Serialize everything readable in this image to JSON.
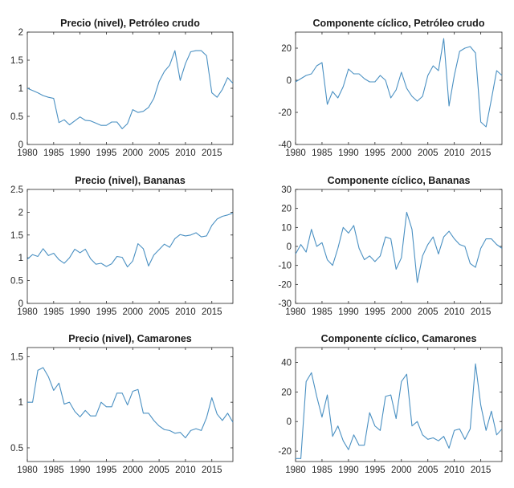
{
  "chart_data": [
    {
      "type": "line",
      "title": "Precio (nivel), Petróleo crudo",
      "xlabel": "",
      "ylabel": "",
      "xlim": [
        1980,
        2019
      ],
      "ylim": [
        0,
        2
      ],
      "xticks": [
        1980,
        1985,
        1990,
        1995,
        2000,
        2005,
        2010,
        2015
      ],
      "yticks": [
        0,
        0.5,
        1,
        1.5,
        2
      ],
      "ytick_labels": [
        "0",
        "0.5",
        "1",
        "1.5",
        "2"
      ],
      "grid": false,
      "color": "#4a90c2",
      "x": [
        1980,
        1981,
        1982,
        1983,
        1984,
        1985,
        1986,
        1987,
        1988,
        1989,
        1990,
        1991,
        1992,
        1993,
        1994,
        1995,
        1996,
        1997,
        1998,
        1999,
        2000,
        2001,
        2002,
        2003,
        2004,
        2005,
        2006,
        2007,
        2008,
        2009,
        2010,
        2011,
        2012,
        2013,
        2014,
        2015,
        2016,
        2017,
        2018,
        2019
      ],
      "y": [
        1.0,
        0.96,
        0.92,
        0.87,
        0.84,
        0.82,
        0.39,
        0.44,
        0.35,
        0.42,
        0.49,
        0.43,
        0.42,
        0.38,
        0.34,
        0.34,
        0.4,
        0.4,
        0.28,
        0.37,
        0.62,
        0.57,
        0.59,
        0.66,
        0.82,
        1.12,
        1.3,
        1.41,
        1.67,
        1.14,
        1.44,
        1.65,
        1.67,
        1.67,
        1.58,
        0.92,
        0.84,
        0.98,
        1.19,
        1.09
      ]
    },
    {
      "type": "line",
      "title": "Componente cíclico, Petróleo crudo",
      "xlabel": "",
      "ylabel": "",
      "xlim": [
        1980,
        2019
      ],
      "ylim": [
        -40,
        30
      ],
      "xticks": [
        1980,
        1985,
        1990,
        1995,
        2000,
        2005,
        2010,
        2015
      ],
      "yticks": [
        -40,
        -20,
        0,
        20
      ],
      "ytick_labels": [
        "-40",
        "-20",
        "0",
        "20"
      ],
      "grid": false,
      "color": "#4a90c2",
      "x": [
        1980,
        1981,
        1982,
        1983,
        1984,
        1985,
        1986,
        1987,
        1988,
        1989,
        1990,
        1991,
        1992,
        1993,
        1994,
        1995,
        1996,
        1997,
        1998,
        1999,
        2000,
        2001,
        2002,
        2003,
        2004,
        2005,
        2006,
        2007,
        2008,
        2009,
        2010,
        2011,
        2012,
        2013,
        2014,
        2015,
        2016,
        2017,
        2018,
        2019
      ],
      "y": [
        -1,
        1,
        3,
        4,
        9,
        11,
        -15,
        -7,
        -11,
        -4,
        7,
        4,
        4,
        1,
        -1,
        -1,
        3,
        0,
        -11,
        -6,
        5,
        -5,
        -10,
        -13,
        -10,
        3,
        9,
        6,
        26,
        -16,
        3,
        18,
        20,
        21,
        17,
        -26,
        -29,
        -12,
        6,
        3
      ]
    },
    {
      "type": "line",
      "title": "Precio (nivel), Bananas",
      "xlabel": "",
      "ylabel": "",
      "xlim": [
        1980,
        2019
      ],
      "ylim": [
        0,
        2.5
      ],
      "xticks": [
        1980,
        1985,
        1990,
        1995,
        2000,
        2005,
        2010,
        2015
      ],
      "yticks": [
        0,
        0.5,
        1,
        1.5,
        2,
        2.5
      ],
      "ytick_labels": [
        "0",
        "0.5",
        "1",
        "1.5",
        "2",
        "2.5"
      ],
      "grid": false,
      "color": "#4a90c2",
      "x": [
        1980,
        1981,
        1982,
        1983,
        1984,
        1985,
        1986,
        1987,
        1988,
        1989,
        1990,
        1991,
        1992,
        1993,
        1994,
        1995,
        1996,
        1997,
        1998,
        1999,
        2000,
        2001,
        2002,
        2003,
        2004,
        2005,
        2006,
        2007,
        2008,
        2009,
        2010,
        2011,
        2012,
        2013,
        2014,
        2015,
        2016,
        2017,
        2018,
        2019
      ],
      "y": [
        0.97,
        1.07,
        1.03,
        1.2,
        1.05,
        1.1,
        0.96,
        0.88,
        1.0,
        1.19,
        1.11,
        1.19,
        0.98,
        0.86,
        0.88,
        0.81,
        0.87,
        1.03,
        1.01,
        0.8,
        0.93,
        1.31,
        1.2,
        0.82,
        1.06,
        1.18,
        1.3,
        1.23,
        1.42,
        1.51,
        1.48,
        1.5,
        1.55,
        1.46,
        1.48,
        1.71,
        1.85,
        1.91,
        1.94,
        1.98
      ]
    },
    {
      "type": "line",
      "title": "Componente cíclico, Bananas",
      "xlabel": "",
      "ylabel": "",
      "xlim": [
        1980,
        2019
      ],
      "ylim": [
        -30,
        30
      ],
      "xticks": [
        1980,
        1985,
        1990,
        1995,
        2000,
        2005,
        2010,
        2015
      ],
      "yticks": [
        -30,
        -20,
        -10,
        0,
        10,
        20,
        30
      ],
      "ytick_labels": [
        "-30",
        "-20",
        "-10",
        "0",
        "10",
        "20",
        "30"
      ],
      "grid": false,
      "color": "#4a90c2",
      "x": [
        1980,
        1981,
        1982,
        1983,
        1984,
        1985,
        1986,
        1987,
        1988,
        1989,
        1990,
        1991,
        1992,
        1993,
        1994,
        1995,
        1996,
        1997,
        1998,
        1999,
        2000,
        2001,
        2002,
        2003,
        2004,
        2005,
        2006,
        2007,
        2008,
        2009,
        2010,
        2011,
        2012,
        2013,
        2014,
        2015,
        2016,
        2017,
        2018,
        2019
      ],
      "y": [
        -4,
        1,
        -3,
        9,
        0,
        2,
        -7,
        -10,
        -1,
        10,
        7,
        11,
        -1,
        -7,
        -5,
        -8,
        -5,
        5,
        4,
        -12,
        -6,
        18,
        9,
        -19,
        -5,
        1,
        5,
        -4,
        5,
        8,
        4,
        1,
        0,
        -9,
        -11,
        -1,
        4,
        4,
        1,
        -1
      ]
    },
    {
      "type": "line",
      "title": "Precio (nivel), Camarones",
      "xlabel": "",
      "ylabel": "",
      "xlim": [
        1980,
        2019
      ],
      "ylim": [
        0.35,
        1.6
      ],
      "xticks": [
        1980,
        1985,
        1990,
        1995,
        2000,
        2005,
        2010,
        2015
      ],
      "yticks": [
        0.5,
        1,
        1.5
      ],
      "ytick_labels": [
        "0.5",
        "1",
        "1.5"
      ],
      "grid": false,
      "color": "#4a90c2",
      "x": [
        1980,
        1981,
        1982,
        1983,
        1984,
        1985,
        1986,
        1987,
        1988,
        1989,
        1990,
        1991,
        1992,
        1993,
        1994,
        1995,
        1996,
        1997,
        1998,
        1999,
        2000,
        2001,
        2002,
        2003,
        2004,
        2005,
        2006,
        2007,
        2008,
        2009,
        2010,
        2011,
        2012,
        2013,
        2014,
        2015,
        2016,
        2017,
        2018,
        2019
      ],
      "y": [
        1.0,
        1.0,
        1.35,
        1.38,
        1.28,
        1.13,
        1.21,
        0.98,
        1.0,
        0.9,
        0.84,
        0.91,
        0.85,
        0.85,
        1.0,
        0.95,
        0.95,
        1.1,
        1.1,
        0.97,
        1.12,
        1.14,
        0.88,
        0.88,
        0.8,
        0.74,
        0.7,
        0.69,
        0.66,
        0.67,
        0.61,
        0.69,
        0.71,
        0.69,
        0.83,
        1.05,
        0.87,
        0.8,
        0.88,
        0.78
      ]
    },
    {
      "type": "line",
      "title": "Componente cíclico, Camarones",
      "xlabel": "",
      "ylabel": "",
      "xlim": [
        1980,
        2019
      ],
      "ylim": [
        -27,
        50
      ],
      "xticks": [
        1980,
        1985,
        1990,
        1995,
        2000,
        2005,
        2010,
        2015
      ],
      "yticks": [
        -20,
        0,
        20,
        40
      ],
      "ytick_labels": [
        "-20",
        "0",
        "20",
        "40"
      ],
      "grid": false,
      "color": "#4a90c2",
      "x": [
        1980,
        1981,
        1982,
        1983,
        1984,
        1985,
        1986,
        1987,
        1988,
        1989,
        1990,
        1991,
        1992,
        1993,
        1994,
        1995,
        1996,
        1997,
        1998,
        1999,
        2000,
        2001,
        2002,
        2003,
        2004,
        2005,
        2006,
        2007,
        2008,
        2009,
        2010,
        2011,
        2012,
        2013,
        2014,
        2015,
        2016,
        2017,
        2018,
        2019
      ],
      "y": [
        -25,
        -25,
        27,
        33,
        17,
        3,
        18,
        -10,
        -3,
        -13,
        -19,
        -9,
        -16,
        -16,
        6,
        -3,
        -6,
        17,
        18,
        2,
        27,
        32,
        -3,
        0,
        -9,
        -12,
        -11,
        -13,
        -10,
        -18,
        -6,
        -5,
        -12,
        -5,
        39,
        11,
        -6,
        7,
        -9,
        -5
      ]
    }
  ]
}
